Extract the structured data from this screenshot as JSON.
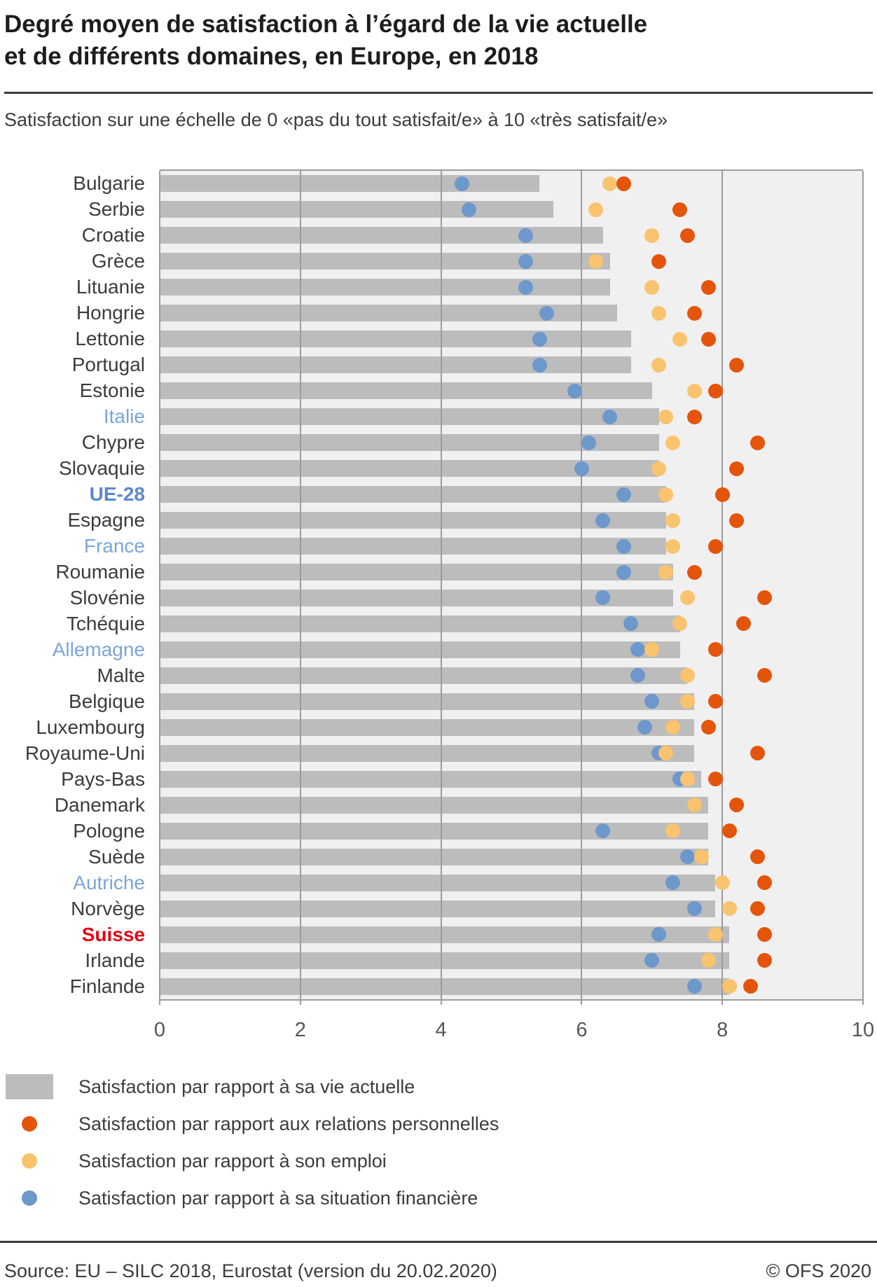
{
  "title": {
    "line1": "Degré moyen de satisfaction à l’égard de la vie actuelle",
    "line2": "et de différents domaines, en Europe, en 2018"
  },
  "subtitle": "Satisfaction sur une échelle de 0 «pas du tout satisfait/e» à 10 «très satisfait/e»",
  "colors": {
    "bar_gray": "#bcbcbc",
    "dot_relations_orange": "#e4540a",
    "dot_emploi_yellow": "#fac36e",
    "dot_financiere_blue": "#6d98cc",
    "plot_background": "#f0f0f0",
    "gridline_gray": "#9c9c9c",
    "label_highlight_blue": "#7ba6d9",
    "label_ue28_blue": "#5c88cc",
    "label_suisse_red": "#e30613"
  },
  "chart_data": {
    "type": "bar",
    "orientation": "horizontal",
    "xlabel": "",
    "ylabel": "",
    "xlim": [
      0,
      10
    ],
    "x_ticks": [
      0,
      2,
      4,
      6,
      8,
      10
    ],
    "grid": "vertical",
    "categories": [
      "Bulgarie",
      "Serbie",
      "Croatie",
      "Grèce",
      "Lituanie",
      "Hongrie",
      "Lettonie",
      "Portugal",
      "Estonie",
      "Italie",
      "Chypre",
      "Slovaquie",
      "UE-28",
      "Espagne",
      "France",
      "Roumanie",
      "Slovénie",
      "Tchéquie",
      "Allemagne",
      "Malte",
      "Belgique",
      "Luxembourg",
      "Royaume-Uni",
      "Pays-Bas",
      "Danemark",
      "Pologne",
      "Suède",
      "Autriche",
      "Norvège",
      "Suisse",
      "Irlande",
      "Finlande"
    ],
    "category_styles": {
      "9": "hl-blue",
      "14": "hl-blue",
      "18": "hl-blue",
      "27": "hl-blue",
      "12": "hl-boldblue",
      "29": "hl-red"
    },
    "series": [
      {
        "name": "Satisfaction par rapport à sa vie actuelle",
        "render": "bar",
        "color": "#bcbcbc",
        "values": [
          5.4,
          5.6,
          6.3,
          6.4,
          6.4,
          6.5,
          6.7,
          6.7,
          7.0,
          7.1,
          7.1,
          7.1,
          7.2,
          7.2,
          7.2,
          7.3,
          7.3,
          7.4,
          7.4,
          7.5,
          7.6,
          7.6,
          7.6,
          7.7,
          7.8,
          7.8,
          7.8,
          7.9,
          7.9,
          8.1,
          8.1,
          8.1
        ]
      },
      {
        "name": "Satisfaction par rapport aux relations personnelles",
        "render": "dot",
        "css": "relations",
        "color": "#e4540a",
        "values": [
          6.6,
          7.4,
          7.5,
          7.1,
          7.8,
          7.6,
          7.8,
          8.2,
          7.9,
          7.6,
          8.5,
          8.2,
          8.0,
          8.2,
          7.9,
          7.6,
          8.6,
          8.3,
          7.9,
          8.6,
          7.9,
          7.8,
          8.5,
          7.9,
          8.2,
          8.1,
          8.5,
          8.6,
          8.5,
          8.6,
          8.6,
          8.4
        ]
      },
      {
        "name": "Satisfaction par rapport à son emploi",
        "render": "dot",
        "css": "emploi",
        "color": "#fac36e",
        "values": [
          6.4,
          6.2,
          7.0,
          6.2,
          7.0,
          7.1,
          7.4,
          7.1,
          7.6,
          7.2,
          7.3,
          7.1,
          7.2,
          7.3,
          7.3,
          7.2,
          7.5,
          7.4,
          7.0,
          7.5,
          7.5,
          7.3,
          7.2,
          7.5,
          7.6,
          7.3,
          7.7,
          8.0,
          8.1,
          7.9,
          7.8,
          8.1
        ]
      },
      {
        "name": "Satisfaction par rapport à sa situation financière",
        "render": "dot",
        "css": "financiere",
        "color": "#6d98cc",
        "values": [
          4.3,
          4.4,
          5.2,
          5.2,
          5.2,
          5.5,
          5.4,
          5.4,
          5.9,
          6.4,
          6.1,
          6.0,
          6.6,
          6.3,
          6.6,
          6.6,
          6.3,
          6.7,
          6.8,
          6.8,
          7.0,
          6.9,
          7.1,
          7.4,
          7.6,
          6.3,
          7.5,
          7.3,
          7.6,
          7.1,
          7.0,
          7.6
        ]
      }
    ]
  },
  "legend": [
    {
      "swatch": "bar",
      "color": "#bcbcbc",
      "label": "Satisfaction par rapport à sa vie actuelle"
    },
    {
      "swatch": "dot",
      "color": "#e4540a",
      "label": "Satisfaction par rapport aux relations personnelles"
    },
    {
      "swatch": "dot",
      "color": "#fac36e",
      "label": "Satisfaction par rapport à son emploi"
    },
    {
      "swatch": "dot",
      "color": "#6d98cc",
      "label": "Satisfaction par rapport à sa situation financière"
    }
  ],
  "footer": {
    "source": "Source: EU – SILC 2018, Eurostat (version du 20.02.2020)",
    "copyright": "© OFS 2020"
  }
}
